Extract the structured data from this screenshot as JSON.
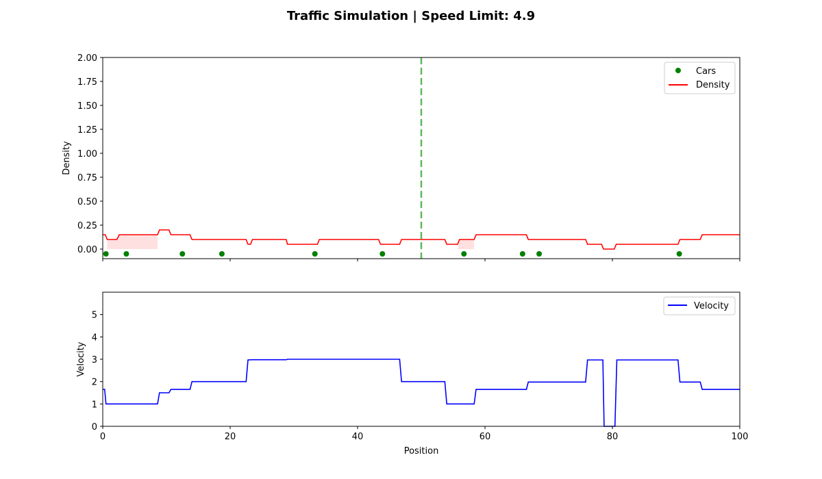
{
  "figure": {
    "title": "Traffic Simulation | Speed Limit: 4.9"
  },
  "chart_data": [
    {
      "type": "line",
      "name": "density-panel",
      "ylabel": "Density",
      "xlabel": "",
      "xlim": [
        0,
        100
      ],
      "ylim": [
        -0.1,
        2.0
      ],
      "yticks": [
        0.0,
        0.25,
        0.5,
        0.75,
        1.0,
        1.25,
        1.5,
        1.75,
        2.0
      ],
      "ytick_labels": [
        "0.00",
        "0.25",
        "0.50",
        "0.75",
        "1.00",
        "1.25",
        "1.50",
        "1.75",
        "2.00"
      ],
      "xticks": [
        0,
        20,
        40,
        60,
        80,
        100
      ],
      "grid": false,
      "legend": {
        "placement": "top-right",
        "entries": [
          "Cars",
          "Density"
        ]
      },
      "colors": {
        "density": "#ff0000",
        "cars": "#008000",
        "fill": "#ffcccc",
        "marker_line": "#5cb85c"
      },
      "vline": {
        "x": 50
      },
      "cars": {
        "name": "Cars",
        "y": -0.05,
        "x": [
          0.5,
          3.7,
          12.5,
          18.7,
          33.3,
          43.9,
          56.7,
          65.9,
          68.5,
          90.5
        ]
      },
      "density": {
        "name": "Density",
        "points": [
          [
            0,
            0.15
          ],
          [
            0.4,
            0.15
          ],
          [
            0.7,
            0.1
          ],
          [
            2.2,
            0.1
          ],
          [
            2.6,
            0.15
          ],
          [
            8.6,
            0.15
          ],
          [
            8.9,
            0.2
          ],
          [
            10.4,
            0.2
          ],
          [
            10.7,
            0.15
          ],
          [
            13.7,
            0.15
          ],
          [
            14.0,
            0.1
          ],
          [
            22.5,
            0.1
          ],
          [
            22.8,
            0.05
          ],
          [
            23.2,
            0.05
          ],
          [
            23.5,
            0.1
          ],
          [
            28.8,
            0.1
          ],
          [
            29.0,
            0.05
          ],
          [
            33.7,
            0.05
          ],
          [
            34.0,
            0.1
          ],
          [
            43.3,
            0.1
          ],
          [
            43.6,
            0.05
          ],
          [
            46.6,
            0.05
          ],
          [
            46.9,
            0.1
          ],
          [
            53.7,
            0.1
          ],
          [
            54.0,
            0.05
          ],
          [
            55.7,
            0.05
          ],
          [
            56.0,
            0.1
          ],
          [
            58.3,
            0.1
          ],
          [
            58.6,
            0.15
          ],
          [
            66.5,
            0.15
          ],
          [
            66.8,
            0.1
          ],
          [
            75.8,
            0.1
          ],
          [
            76.1,
            0.05
          ],
          [
            78.3,
            0.05
          ],
          [
            78.6,
            0.0
          ],
          [
            80.3,
            0.0
          ],
          [
            80.6,
            0.05
          ],
          [
            90.3,
            0.05
          ],
          [
            90.6,
            0.1
          ],
          [
            93.8,
            0.1
          ],
          [
            94.1,
            0.15
          ],
          [
            100,
            0.15
          ]
        ]
      },
      "fill_regions": [
        {
          "x": [
            0.7,
            8.6
          ],
          "top_points": [
            [
              0.7,
              0.1
            ],
            [
              2.2,
              0.1
            ],
            [
              2.6,
              0.15
            ],
            [
              8.6,
              0.15
            ]
          ]
        },
        {
          "x": [
            55.7,
            58.3
          ],
          "top_points": [
            [
              56.0,
              0.1
            ],
            [
              58.3,
              0.1
            ]
          ]
        }
      ]
    },
    {
      "type": "line",
      "name": "velocity-panel",
      "ylabel": "Velocity",
      "xlabel": "Position",
      "xlim": [
        0,
        100
      ],
      "ylim": [
        0,
        6
      ],
      "yticks": [
        0,
        1,
        2,
        3,
        4,
        5
      ],
      "ytick_labels": [
        "0",
        "1",
        "2",
        "3",
        "4",
        "5"
      ],
      "xticks": [
        0,
        20,
        40,
        60,
        80,
        100
      ],
      "xtick_labels": [
        "0",
        "20",
        "40",
        "60",
        "80",
        "100"
      ],
      "grid": false,
      "legend": {
        "placement": "top-right",
        "entries": [
          "Velocity"
        ]
      },
      "colors": {
        "velocity": "#0000ff"
      },
      "velocity": {
        "name": "Velocity",
        "points": [
          [
            0,
            1.65
          ],
          [
            0.3,
            1.65
          ],
          [
            0.5,
            1.0
          ],
          [
            8.6,
            1.0
          ],
          [
            8.9,
            1.5
          ],
          [
            10.4,
            1.5
          ],
          [
            10.7,
            1.65
          ],
          [
            13.7,
            1.65
          ],
          [
            14.0,
            2.0
          ],
          [
            22.5,
            2.0
          ],
          [
            22.8,
            2.97
          ],
          [
            23.5,
            2.98
          ],
          [
            28.8,
            2.98
          ],
          [
            29.0,
            3.0
          ],
          [
            46.6,
            3.0
          ],
          [
            46.9,
            2.0
          ],
          [
            53.7,
            2.0
          ],
          [
            54.0,
            1.0
          ],
          [
            58.3,
            1.0
          ],
          [
            58.6,
            1.65
          ],
          [
            66.5,
            1.65
          ],
          [
            66.8,
            1.98
          ],
          [
            75.8,
            1.98
          ],
          [
            76.1,
            2.97
          ],
          [
            78.5,
            2.97
          ],
          [
            78.7,
            0.0
          ],
          [
            80.4,
            0.0
          ],
          [
            80.7,
            2.97
          ],
          [
            90.3,
            2.97
          ],
          [
            90.6,
            1.98
          ],
          [
            93.8,
            1.98
          ],
          [
            94.1,
            1.65
          ],
          [
            100,
            1.65
          ]
        ]
      }
    }
  ]
}
